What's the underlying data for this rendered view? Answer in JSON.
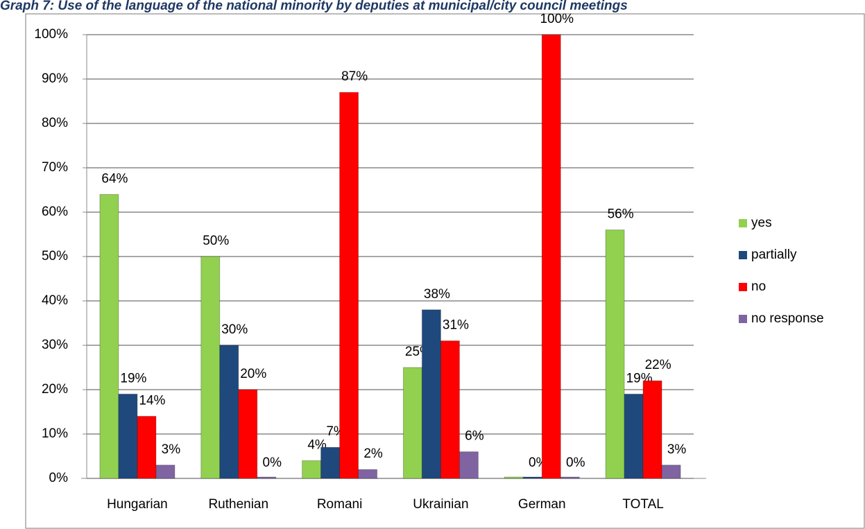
{
  "chart_data": {
    "type": "bar",
    "title": "Graph 7: Use of the language of the national minority by deputies at municipal/city council meetings",
    "categories": [
      "Hungarian",
      "Ruthenian",
      "Romani",
      "Ukrainian",
      "German",
      "TOTAL"
    ],
    "series": [
      {
        "name": "yes",
        "color": "#92d050",
        "values": [
          64,
          50,
          4,
          25,
          0,
          56
        ],
        "value_labels": [
          "64%",
          "50%",
          "4%",
          "25%",
          null,
          "56%"
        ]
      },
      {
        "name": "partially",
        "color": "#1f497d",
        "values": [
          19,
          30,
          7,
          38,
          0,
          19
        ],
        "value_labels": [
          "19%",
          "30%",
          "7%",
          "38%",
          "0%",
          "19%"
        ]
      },
      {
        "name": "no",
        "color": "#ff0000",
        "values": [
          14,
          20,
          87,
          31,
          100,
          22
        ],
        "value_labels": [
          "14%",
          "20%",
          "87%",
          "31%",
          "100%",
          "22%"
        ]
      },
      {
        "name": "no response",
        "color": "#8064a2",
        "values": [
          3,
          0,
          2,
          6,
          0,
          3
        ],
        "value_labels": [
          "3%",
          "0%",
          "2%",
          "6%",
          "0%",
          "3%"
        ]
      }
    ],
    "ylim": [
      0,
      100
    ],
    "yticks": [
      {
        "value": 0,
        "label": "0%"
      },
      {
        "value": 10,
        "label": "10%"
      },
      {
        "value": 20,
        "label": "20%"
      },
      {
        "value": 30,
        "label": "30%"
      },
      {
        "value": 40,
        "label": "40%"
      },
      {
        "value": 50,
        "label": "50%"
      },
      {
        "value": 60,
        "label": "60%"
      },
      {
        "value": 70,
        "label": "70%"
      },
      {
        "value": 80,
        "label": "80%"
      },
      {
        "value": 90,
        "label": "90%"
      },
      {
        "value": 100,
        "label": "100%"
      }
    ],
    "grid": true,
    "legend": "right"
  }
}
